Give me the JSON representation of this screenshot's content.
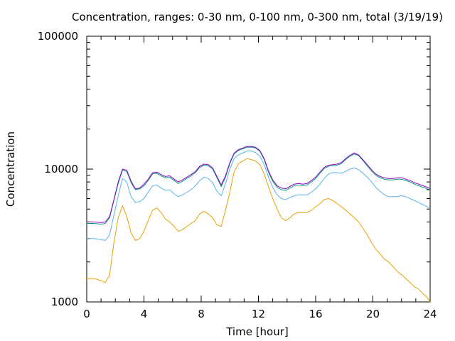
{
  "chart_data": {
    "type": "line",
    "title": "Concentration, ranges: 0-30 nm, 0-100 nm, 0-300 nm, total (3/19/19)",
    "xlabel": "Time [hour]",
    "ylabel": "Concentration",
    "xlim": [
      0,
      24
    ],
    "ylim": [
      1000,
      100000
    ],
    "yscale": "log",
    "grid": false,
    "x_ticks": [
      0,
      4,
      8,
      12,
      16,
      20,
      24
    ],
    "x_tick_labels": [
      "0",
      "4",
      "8",
      "12",
      "16",
      "20",
      "24"
    ],
    "y_ticks": [
      1000,
      10000,
      100000
    ],
    "y_tick_labels": [
      "1000",
      "10000",
      "100000"
    ],
    "x": [
      0,
      0.5,
      1,
      1.3,
      1.6,
      1.9,
      2.2,
      2.5,
      2.8,
      3.1,
      3.4,
      3.7,
      4,
      4.3,
      4.6,
      4.9,
      5.2,
      5.5,
      5.8,
      6.1,
      6.4,
      6.7,
      7,
      7.3,
      7.6,
      7.9,
      8.2,
      8.5,
      8.8,
      9.1,
      9.4,
      9.7,
      10,
      10.3,
      10.6,
      10.9,
      11.2,
      11.5,
      11.8,
      12.1,
      12.4,
      12.7,
      13,
      13.3,
      13.6,
      13.9,
      14.2,
      14.5,
      14.8,
      15.1,
      15.4,
      15.7,
      16,
      16.3,
      16.6,
      16.9,
      17.2,
      17.5,
      17.8,
      18.1,
      18.4,
      18.7,
      19,
      19.3,
      19.6,
      19.9,
      20.2,
      20.5,
      20.8,
      21.1,
      21.4,
      21.7,
      22,
      22.3,
      22.6,
      22.9,
      23.2,
      23.5,
      23.8,
      24
    ],
    "series": [
      {
        "color": "#e8a000",
        "values": [
          1500,
          1500,
          1450,
          1400,
          1600,
          2800,
          4300,
          5300,
          4400,
          3300,
          2900,
          3000,
          3400,
          4100,
          4900,
          5100,
          4700,
          4200,
          4000,
          3700,
          3400,
          3500,
          3700,
          3900,
          4100,
          4600,
          4800,
          4600,
          4300,
          3800,
          3700,
          4900,
          6700,
          9500,
          11000,
          11500,
          12000,
          11800,
          11500,
          10800,
          9200,
          7400,
          6000,
          5000,
          4300,
          4100,
          4300,
          4600,
          4700,
          4700,
          4700,
          4900,
          5200,
          5500,
          5900,
          6000,
          5800,
          5500,
          5200,
          4900,
          4600,
          4300,
          4000,
          3600,
          3200,
          2800,
          2500,
          2300,
          2100,
          2000,
          1850,
          1700,
          1600,
          1500,
          1400,
          1300,
          1250,
          1150,
          1080,
          1000
        ]
      },
      {
        "color": "#56b4e9",
        "values": [
          3000,
          3000,
          2950,
          2900,
          3200,
          4500,
          6300,
          8500,
          8000,
          6200,
          5600,
          5700,
          6000,
          6700,
          7500,
          7600,
          7200,
          6900,
          7000,
          6500,
          6200,
          6400,
          6700,
          7000,
          7500,
          8200,
          8700,
          8500,
          7900,
          6800,
          6300,
          7800,
          10000,
          12000,
          12800,
          13200,
          13700,
          13700,
          13300,
          12500,
          10800,
          8700,
          7300,
          6400,
          6000,
          5900,
          6100,
          6300,
          6400,
          6400,
          6400,
          6700,
          7100,
          7700,
          8500,
          9200,
          9400,
          9400,
          9300,
          9600,
          10000,
          10200,
          9900,
          9300,
          8700,
          8000,
          7300,
          6800,
          6400,
          6200,
          6200,
          6200,
          6300,
          6200,
          6000,
          5800,
          5600,
          5400,
          5200,
          5000
        ]
      },
      {
        "color": "#009e73",
        "values": [
          3900,
          3900,
          3850,
          3900,
          4300,
          5800,
          7800,
          9800,
          9600,
          7900,
          7000,
          7100,
          7500,
          8200,
          9200,
          9300,
          8900,
          8600,
          8700,
          8200,
          7800,
          8100,
          8500,
          8900,
          9400,
          10300,
          10700,
          10600,
          10000,
          8600,
          7400,
          8700,
          11000,
          13000,
          13800,
          14200,
          14600,
          14600,
          14400,
          13600,
          11800,
          9500,
          8100,
          7300,
          7000,
          6900,
          7200,
          7500,
          7600,
          7500,
          7600,
          8000,
          8500,
          9300,
          10100,
          10500,
          10600,
          10700,
          11000,
          11800,
          12500,
          13000,
          12600,
          11600,
          10600,
          9700,
          9000,
          8600,
          8400,
          8300,
          8300,
          8400,
          8400,
          8200,
          8000,
          7700,
          7500,
          7300,
          7100,
          7000
        ]
      },
      {
        "color": "#9400d3",
        "values": [
          4000,
          4000,
          3950,
          4000,
          4400,
          5900,
          8000,
          10000,
          9800,
          8100,
          7100,
          7200,
          7700,
          8400,
          9400,
          9500,
          9100,
          8800,
          8900,
          8400,
          8000,
          8300,
          8700,
          9100,
          9600,
          10500,
          10900,
          10800,
          10200,
          8800,
          7600,
          8900,
          11200,
          13200,
          14000,
          14400,
          14800,
          14800,
          14600,
          13800,
          12000,
          9700,
          8300,
          7500,
          7200,
          7100,
          7400,
          7700,
          7800,
          7700,
          7800,
          8200,
          8700,
          9500,
          10300,
          10700,
          10800,
          10900,
          11200,
          12000,
          12700,
          13200,
          12800,
          11800,
          10800,
          9900,
          9200,
          8800,
          8600,
          8500,
          8500,
          8600,
          8600,
          8400,
          8200,
          7900,
          7700,
          7500,
          7300,
          7100
        ]
      }
    ]
  }
}
